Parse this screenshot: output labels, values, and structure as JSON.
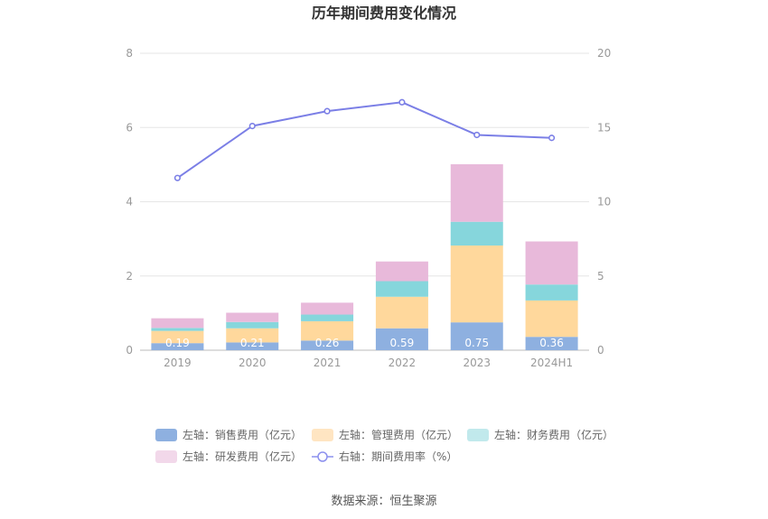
{
  "chart_data": {
    "type": "bar",
    "title": "历年期间费用变化情况",
    "categories": [
      "2019",
      "2020",
      "2021",
      "2022",
      "2023",
      "2024H1"
    ],
    "stacked": true,
    "left_axis": {
      "ylim": [
        0,
        8
      ],
      "ticks": [
        "0",
        "2",
        "4",
        "6",
        "8"
      ]
    },
    "right_axis": {
      "ylim": [
        0,
        20
      ],
      "ticks": [
        "0",
        "5",
        "10",
        "15",
        "20"
      ]
    },
    "grid": true,
    "legend_position": "bottom",
    "series": [
      {
        "name": "左轴：销售费用（亿元）",
        "axis": "left",
        "kind": "bar",
        "color": "#8eb0e0",
        "values": [
          0.19,
          0.21,
          0.26,
          0.59,
          0.75,
          0.36
        ],
        "data_labels": [
          "0.19",
          "0.21",
          "0.26",
          "0.59",
          "0.75",
          "0.36"
        ]
      },
      {
        "name": "左轴：管理费用（亿元）",
        "axis": "left",
        "kind": "bar",
        "color": "#ffd89c",
        "values": [
          0.33,
          0.38,
          0.52,
          0.85,
          2.07,
          0.98
        ]
      },
      {
        "name": "左轴：财务费用（亿元）",
        "axis": "left",
        "kind": "bar",
        "color": "#86d6dc",
        "values": [
          0.08,
          0.17,
          0.18,
          0.42,
          0.64,
          0.43
        ]
      },
      {
        "name": "左轴：研发费用（亿元）",
        "axis": "left",
        "kind": "bar",
        "color": "#e8b9da",
        "values": [
          0.26,
          0.25,
          0.32,
          0.53,
          1.55,
          1.16
        ]
      },
      {
        "name": "右轴：期间费用率（%）",
        "axis": "right",
        "kind": "line",
        "color": "#7b7fe6",
        "values": [
          11.6,
          15.1,
          16.1,
          16.7,
          14.5,
          14.3
        ]
      }
    ],
    "source": "数据来源：恒生聚源"
  }
}
